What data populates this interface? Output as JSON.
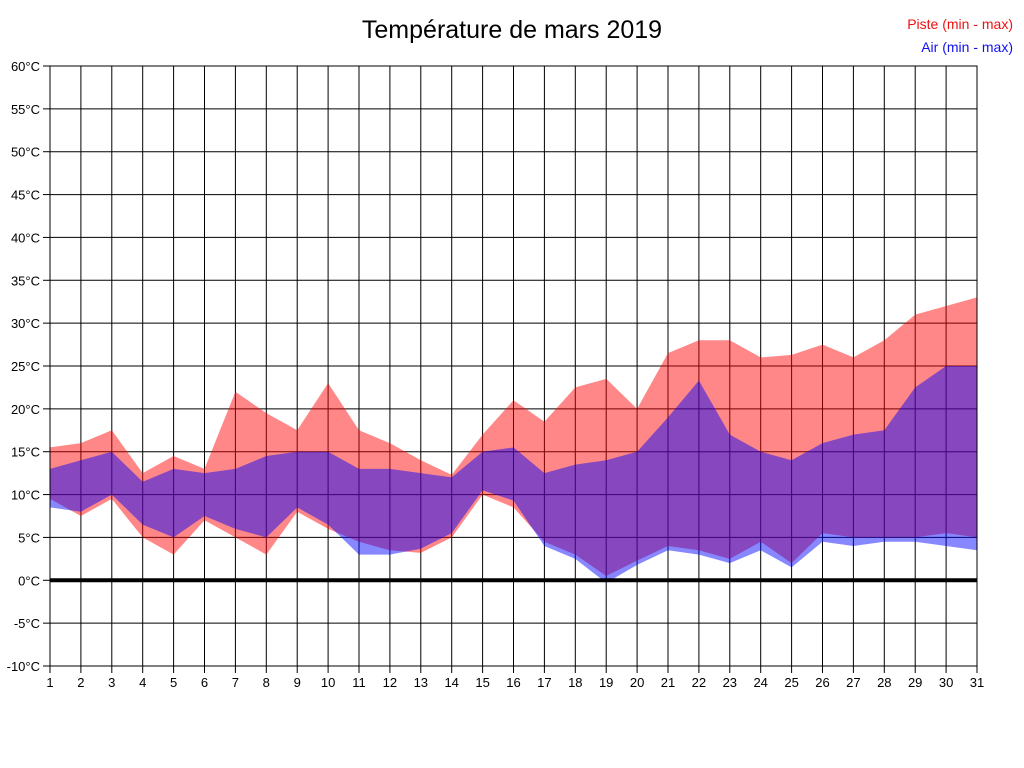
{
  "title": "Température de mars 2019",
  "legend": {
    "piste_label": "Piste (min - max)",
    "air_label": "Air (min - max)",
    "piste_color": "#ee1111",
    "air_color": "#1111ee"
  },
  "chart_data": {
    "type": "area",
    "title": "Température de mars 2019",
    "subtitle": "",
    "xlabel": "",
    "ylabel": "",
    "grid": true,
    "legend_position": "top-right",
    "ylim": [
      -10,
      60
    ],
    "y_step": 5,
    "y_tick_labels": [
      "60°C",
      "55°C",
      "50°C",
      "45°C",
      "40°C",
      "35°C",
      "30°C",
      "25°C",
      "20°C",
      "15°C",
      "10°C",
      "5°C",
      "0°C",
      "-5°C",
      "-10°C"
    ],
    "x": [
      1,
      2,
      3,
      4,
      5,
      6,
      7,
      8,
      9,
      10,
      11,
      12,
      13,
      14,
      15,
      16,
      17,
      18,
      19,
      20,
      21,
      22,
      23,
      24,
      25,
      26,
      27,
      28,
      29,
      30,
      31
    ],
    "x_tick_labels": [
      "1",
      "2",
      "3",
      "4",
      "5",
      "6",
      "7",
      "8",
      "9",
      "10",
      "11",
      "12",
      "13",
      "14",
      "15",
      "16",
      "17",
      "18",
      "19",
      "20",
      "21",
      "22",
      "23",
      "24",
      "25",
      "26",
      "27",
      "28",
      "29",
      "30",
      "31"
    ],
    "zero_line": true,
    "zero_line_color": "#000000",
    "gridline_color": "#000000",
    "series": [
      {
        "name": "Piste (min - max)",
        "band": true,
        "fill": "rgba(255,0,0,0.47)",
        "max": [
          15.5,
          16,
          17.5,
          12.5,
          14.5,
          13,
          22,
          19.5,
          17.5,
          23,
          17.5,
          16,
          14,
          12.3,
          17,
          21,
          18.5,
          22.5,
          23.5,
          20,
          26.5,
          28,
          28,
          26,
          26.3,
          27.5,
          26,
          28,
          31,
          32,
          33
        ],
        "min": [
          9.5,
          7.5,
          9.5,
          5,
          3,
          7,
          5,
          3,
          8,
          6,
          4.5,
          3.5,
          3.2,
          5,
          10,
          8.5,
          4.5,
          3,
          0.5,
          2.3,
          4,
          3.5,
          2.5,
          4.5,
          2,
          5.5,
          5,
          5,
          5,
          5.5,
          5
        ]
      },
      {
        "name": "Air (min - max)",
        "band": true,
        "fill": "rgba(0,0,255,0.47)",
        "max": [
          13,
          14,
          15,
          11.5,
          13,
          12.5,
          13,
          14.5,
          15,
          15,
          13,
          13,
          12.5,
          12,
          15,
          15.5,
          12.5,
          13.5,
          14,
          15,
          19,
          23.3,
          17,
          15,
          14,
          16,
          17,
          17.5,
          22.5,
          25,
          25
        ],
        "min": [
          8.5,
          8,
          10,
          6.5,
          5,
          7.5,
          6,
          5,
          8.5,
          6.5,
          3,
          3,
          3.7,
          5.5,
          10.5,
          9.3,
          4,
          2.5,
          -0.3,
          1.8,
          3.5,
          3,
          2,
          3.5,
          1.5,
          4.5,
          4,
          4.5,
          4.5,
          4,
          3.5
        ]
      }
    ]
  }
}
